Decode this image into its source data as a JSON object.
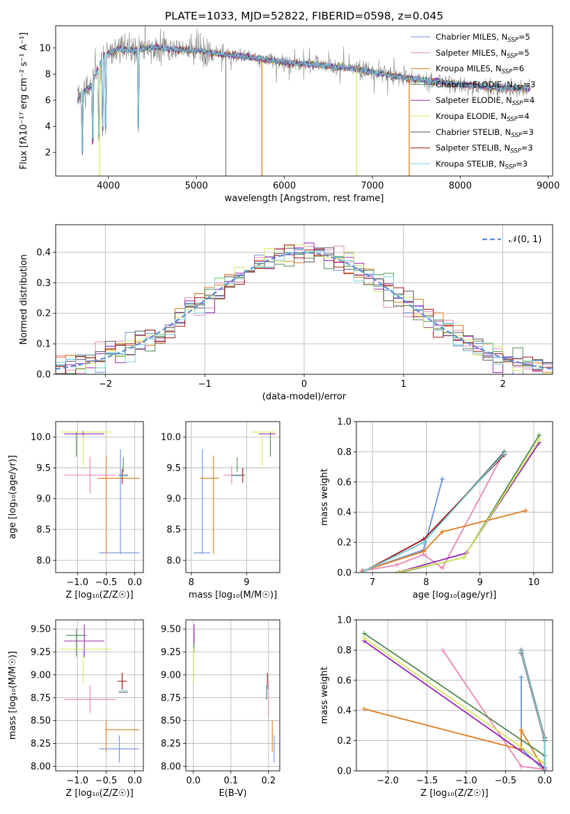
{
  "colors": {
    "Chabrier MILES": "#6a8fdc",
    "Salpeter MILES": "#e886b6",
    "Kroupa MILES": "#e07b1a",
    "Chabrier ELODIE": "#4f8a4f",
    "Salpeter ELODIE": "#9b24b4",
    "Kroupa ELODIE": "#d6ea5a",
    "Chabrier STELIB": "#555555",
    "Salpeter STELIB": "#a01010",
    "Kroupa STELIB": "#77d3df",
    "grid": "#b0b0b0",
    "gauss": "#5b8bd6"
  },
  "chart_data": [
    {
      "id": "spectrum",
      "type": "line",
      "title": "PLATE=1033, MJD=52822, FIBERID=0598, z=0.045",
      "xlabel": "wavelength [Angstrom, rest frame]",
      "ylabel": "Flux [fλ10⁻¹⁷ erg cm⁻² s⁻¹ A⁻¹]",
      "xlim": [
        3400,
        9050
      ],
      "ylim": [
        0.2,
        11.7
      ],
      "xticks": [
        4000,
        5000,
        6000,
        7000,
        8000,
        9000
      ],
      "yticks": [
        2,
        4,
        6,
        8,
        10
      ],
      "grid": false,
      "legend_position": "top-right",
      "legend": [
        {
          "text": "Chabrier MILES, N",
          "sub": "SSP",
          "tail": "=5"
        },
        {
          "text": "Salpeter MILES, N",
          "sub": "SSP",
          "tail": "=5"
        },
        {
          "text": "Kroupa MILES, N",
          "sub": "SSP",
          "tail": "=6"
        },
        {
          "text": "Chabrier ELODIE, N",
          "sub": "SSP",
          "tail": "=3"
        },
        {
          "text": "Salpeter ELODIE, N",
          "sub": "SSP",
          "tail": "=4"
        },
        {
          "text": "Kroupa ELODIE, N",
          "sub": "SSP",
          "tail": "=4"
        },
        {
          "text": "Chabrier STELIB, N",
          "sub": "SSP",
          "tail": "=3"
        },
        {
          "text": "Salpeter STELIB, N",
          "sub": "SSP",
          "tail": "=3"
        },
        {
          "text": "Kroupa STELIB, N",
          "sub": "SSP",
          "tail": "=3"
        }
      ],
      "continuum": [
        [
          3650,
          6.2
        ],
        [
          3800,
          7.1
        ],
        [
          3950,
          9.4
        ],
        [
          4100,
          9.9
        ],
        [
          4300,
          9.8
        ],
        [
          4500,
          10.1
        ],
        [
          4700,
          9.9
        ],
        [
          5000,
          9.8
        ],
        [
          5300,
          9.5
        ],
        [
          5600,
          9.3
        ],
        [
          6000,
          8.9
        ],
        [
          6400,
          8.7
        ],
        [
          6800,
          8.4
        ],
        [
          7200,
          7.9
        ],
        [
          7600,
          7.5
        ],
        [
          8000,
          7.2
        ],
        [
          8500,
          6.9
        ],
        [
          8800,
          6.9
        ]
      ],
      "dips": [
        [
          3700,
          1.5
        ],
        [
          3820,
          2.2
        ],
        [
          3890,
          2.8
        ],
        [
          3934,
          3.2
        ],
        [
          3970,
          3.4
        ],
        [
          4340,
          3.3
        ],
        [
          5335,
          0.2
        ],
        [
          5745,
          0.2
        ],
        [
          6820,
          0.2
        ],
        [
          7420,
          0.2
        ]
      ]
    },
    {
      "id": "residual-histogram",
      "type": "histogram",
      "xlabel": "(data-model)/error",
      "ylabel": "Normed distribution",
      "xlim": [
        -2.5,
        2.5
      ],
      "ylim": [
        0,
        0.49
      ],
      "xticks": [
        -2,
        -1,
        0,
        1,
        2
      ],
      "yticks": [
        0.0,
        0.1,
        0.2,
        0.3,
        0.4
      ],
      "grid": true,
      "bin_width": 0.1,
      "legend": "𝒩(0, 1)",
      "legend_position": "top-right",
      "gaussian": {
        "mean": 0,
        "sigma": 1
      }
    },
    {
      "id": "age-vs-metallicity",
      "type": "errorbar",
      "xlabel": "Z [log₁₀(Z/Z☉)]",
      "ylabel": "age  [log₁₀(age/yr)]",
      "xlim": [
        -1.38,
        0.15
      ],
      "ylim": [
        7.8,
        10.25
      ],
      "xticks": [
        -1.0,
        -0.5,
        0.0
      ],
      "yticks": [
        8.0,
        8.5,
        9.0,
        9.5,
        10.0
      ],
      "grid": true,
      "points": [
        {
          "model": "Chabrier MILES",
          "x": -0.27,
          "xerr": 0.35,
          "y": 8.12,
          "yerr": 0.0
        },
        {
          "model": "Chabrier MILES",
          "x": -0.25,
          "xerr": 0.0,
          "y": 8.95,
          "yerr": 0.85
        },
        {
          "model": "Salpeter MILES",
          "x": -0.78,
          "xerr": 0.45,
          "y": 9.38,
          "yerr": 0.3
        },
        {
          "model": "Kroupa MILES",
          "x": -0.5,
          "xerr": 0.0,
          "y": 8.9,
          "yerr": 0.8
        },
        {
          "model": "Kroupa MILES",
          "x": -0.28,
          "xerr": 0.37,
          "y": 9.33,
          "yerr": 0.0
        },
        {
          "model": "Chabrier ELODIE",
          "x": -1.02,
          "xerr": 0.0,
          "y": 9.88,
          "yerr": 0.2
        },
        {
          "model": "Chabrier ELODIE",
          "x": -0.2,
          "xerr": 0.0,
          "y": 9.55,
          "yerr": 0.12
        },
        {
          "model": "Salpeter ELODIE",
          "x": -0.88,
          "xerr": 0.35,
          "y": 10.05,
          "yerr": 0.0
        },
        {
          "model": "Salpeter ELODIE",
          "x": -0.9,
          "xerr": 0.0,
          "y": 10.02,
          "yerr": 0.08
        },
        {
          "model": "Kroupa ELODIE",
          "x": -0.85,
          "xerr": 0.45,
          "y": 10.08,
          "yerr": 0.0
        },
        {
          "model": "Kroupa ELODIE",
          "x": -0.9,
          "xerr": 0.0,
          "y": 9.78,
          "yerr": 0.25
        },
        {
          "model": "Chabrier STELIB",
          "x": -0.2,
          "xerr": 0.08,
          "y": 9.38,
          "yerr": 0.0
        },
        {
          "model": "Salpeter STELIB",
          "x": -0.22,
          "xerr": 0.0,
          "y": 9.36,
          "yerr": 0.12
        },
        {
          "model": "Kroupa STELIB",
          "x": -0.2,
          "xerr": 0.08,
          "y": 9.37,
          "yerr": 0.0
        }
      ]
    },
    {
      "id": "age-vs-mass",
      "type": "errorbar",
      "xlabel": "mass [log₁₀(M/M☉)]",
      "ylabel": "",
      "xlim": [
        7.9,
        9.6
      ],
      "ylim": [
        7.8,
        10.25
      ],
      "xticks": [
        8,
        9
      ],
      "yticks": [
        8.0,
        8.5,
        9.0,
        9.5,
        10.0
      ],
      "grid": true,
      "points": [
        {
          "model": "Chabrier MILES",
          "x": 8.19,
          "xerr": 0.15,
          "y": 8.12,
          "yerr": 0.0
        },
        {
          "model": "Chabrier MILES",
          "x": 8.2,
          "xerr": 0.0,
          "y": 8.95,
          "yerr": 0.85
        },
        {
          "model": "Salpeter MILES",
          "x": 8.73,
          "xerr": 0.15,
          "y": 9.38,
          "yerr": 0.15
        },
        {
          "model": "Kroupa MILES",
          "x": 8.4,
          "xerr": 0.0,
          "y": 8.9,
          "yerr": 0.8
        },
        {
          "model": "Kroupa MILES",
          "x": 8.33,
          "xerr": 0.17,
          "y": 9.33,
          "yerr": 0.0
        },
        {
          "model": "Chabrier ELODIE",
          "x": 9.43,
          "xerr": 0.0,
          "y": 9.88,
          "yerr": 0.2
        },
        {
          "model": "Chabrier ELODIE",
          "x": 8.83,
          "xerr": 0.0,
          "y": 9.55,
          "yerr": 0.12
        },
        {
          "model": "Salpeter ELODIE",
          "x": 9.37,
          "xerr": 0.15,
          "y": 10.05,
          "yerr": 0.0
        },
        {
          "model": "Kroupa ELODIE",
          "x": 9.3,
          "xerr": 0.22,
          "y": 10.08,
          "yerr": 0.0
        },
        {
          "model": "Kroupa ELODIE",
          "x": 9.28,
          "xerr": 0.0,
          "y": 9.78,
          "yerr": 0.25
        },
        {
          "model": "Chabrier STELIB",
          "x": 8.81,
          "xerr": 0.08,
          "y": 9.38,
          "yerr": 0.0
        },
        {
          "model": "Salpeter STELIB",
          "x": 8.93,
          "xerr": 0.04,
          "y": 9.38,
          "yerr": 0.12
        },
        {
          "model": "Kroupa STELIB",
          "x": 8.85,
          "xerr": 0.08,
          "y": 9.37,
          "yerr": 0.0
        }
      ]
    },
    {
      "id": "mass-weight-vs-age",
      "type": "line",
      "xlabel": "age  [log₁₀(age/yr)]",
      "ylabel": "mass weight",
      "xlim": [
        6.7,
        10.35
      ],
      "ylim": [
        0.0,
        1.0
      ],
      "xticks": [
        7,
        8,
        9,
        10
      ],
      "yticks": [
        0.0,
        0.2,
        0.4,
        0.6,
        0.8,
        1.0
      ],
      "grid": true,
      "series": [
        {
          "model": "Chabrier MILES",
          "x": [
            6.82,
            7.95,
            8.3
          ],
          "y": [
            0.01,
            0.15,
            0.62
          ]
        },
        {
          "model": "Salpeter MILES",
          "x": [
            6.8,
            7.45,
            7.95,
            8.3,
            9.45
          ],
          "y": [
            0.01,
            0.05,
            0.12,
            0.03,
            0.8
          ]
        },
        {
          "model": "Kroupa MILES",
          "x": [
            6.82,
            7.95,
            8.3,
            9.85
          ],
          "y": [
            0.01,
            0.14,
            0.27,
            0.41
          ]
        },
        {
          "model": "Chabrier ELODIE",
          "x": [
            7.5,
            8.7,
            10.1
          ],
          "y": [
            0.0,
            0.1,
            0.91
          ]
        },
        {
          "model": "Salpeter ELODIE",
          "x": [
            7.45,
            8.75,
            10.1
          ],
          "y": [
            0.0,
            0.13,
            0.86
          ]
        },
        {
          "model": "Kroupa ELODIE",
          "x": [
            7.45,
            8.7,
            10.1
          ],
          "y": [
            0.0,
            0.1,
            0.88
          ]
        },
        {
          "model": "Chabrier STELIB",
          "x": [
            6.85,
            7.95,
            9.45
          ],
          "y": [
            0.01,
            0.2,
            0.8
          ]
        },
        {
          "model": "Salpeter STELIB",
          "x": [
            6.85,
            7.95,
            9.45
          ],
          "y": [
            0.01,
            0.22,
            0.78
          ]
        },
        {
          "model": "Kroupa STELIB",
          "x": [
            6.85,
            7.95,
            9.45
          ],
          "y": [
            0.01,
            0.2,
            0.79
          ]
        }
      ]
    },
    {
      "id": "mass-vs-metallicity",
      "type": "errorbar",
      "xlabel": "Z [log₁₀(Z/Z☉)]",
      "ylabel": "mass [log₁₀(M/M☉)]",
      "xlim": [
        -1.38,
        0.15
      ],
      "ylim": [
        7.95,
        9.6
      ],
      "xticks": [
        -1.0,
        -0.5,
        0.0
      ],
      "yticks": [
        8.0,
        8.25,
        8.5,
        8.75,
        9.0,
        9.25,
        9.5
      ],
      "grid": true,
      "points": [
        {
          "model": "Chabrier MILES",
          "x": -0.27,
          "xerr": 0.35,
          "y": 8.19,
          "yerr": 0.15
        },
        {
          "model": "Salpeter MILES",
          "x": -0.78,
          "xerr": 0.45,
          "y": 8.73,
          "yerr": 0.15
        },
        {
          "model": "Kroupa MILES",
          "x": -0.5,
          "xerr": 0.0,
          "y": 8.33,
          "yerr": 0.17
        },
        {
          "model": "Kroupa MILES",
          "x": -0.22,
          "xerr": 0.3,
          "y": 8.4,
          "yerr": 0.0
        },
        {
          "model": "Chabrier ELODIE",
          "x": -1.02,
          "xerr": 0.18,
          "y": 9.43,
          "yerr": 0.0
        },
        {
          "model": "Chabrier ELODIE",
          "x": -1.02,
          "xerr": 0.0,
          "y": 9.35,
          "yerr": 0.15
        },
        {
          "model": "Salpeter ELODIE",
          "x": -0.88,
          "xerr": 0.35,
          "y": 9.37,
          "yerr": 0.18
        },
        {
          "model": "Kroupa ELODIE",
          "x": -0.85,
          "xerr": 0.45,
          "y": 9.28,
          "yerr": 0.0
        },
        {
          "model": "Kroupa ELODIE",
          "x": -0.9,
          "xerr": 0.0,
          "y": 9.1,
          "yerr": 0.2
        },
        {
          "model": "Chabrier STELIB",
          "x": -0.2,
          "xerr": 0.08,
          "y": 8.81,
          "yerr": 0.0
        },
        {
          "model": "Salpeter STELIB",
          "x": -0.22,
          "xerr": 0.08,
          "y": 8.93,
          "yerr": 0.09
        },
        {
          "model": "Kroupa STELIB",
          "x": -0.2,
          "xerr": 0.08,
          "y": 8.83,
          "yerr": 0.0
        }
      ]
    },
    {
      "id": "mass-vs-extinction",
      "type": "errorbar",
      "xlabel": "E(B-V)",
      "ylabel": "",
      "xlim": [
        -0.02,
        0.23
      ],
      "ylim": [
        7.95,
        9.6
      ],
      "xticks": [
        0.0,
        0.1,
        0.2
      ],
      "yticks": [
        8.0,
        8.25,
        8.5,
        8.75,
        9.0,
        9.25,
        9.5
      ],
      "grid": true,
      "points": [
        {
          "model": "Chabrier MILES",
          "x": 0.215,
          "xerr": 0.0,
          "y": 8.19,
          "yerr": 0.15
        },
        {
          "model": "Salpeter MILES",
          "x": 0.2,
          "xerr": 0.0,
          "y": 8.73,
          "yerr": 0.2
        },
        {
          "model": "Kroupa MILES",
          "x": 0.21,
          "xerr": 0.0,
          "y": 8.33,
          "yerr": 0.17
        },
        {
          "model": "Chabrier ELODIE",
          "x": 0.002,
          "xerr": 0.0,
          "y": 9.35,
          "yerr": 0.1
        },
        {
          "model": "Salpeter ELODIE",
          "x": 0.002,
          "xerr": 0.0,
          "y": 9.45,
          "yerr": 0.1
        },
        {
          "model": "Kroupa ELODIE",
          "x": 0.001,
          "xerr": 0.0,
          "y": 9.1,
          "yerr": 0.2
        },
        {
          "model": "Chabrier STELIB",
          "x": 0.195,
          "xerr": 0.0,
          "y": 8.81,
          "yerr": 0.08
        },
        {
          "model": "Salpeter STELIB",
          "x": 0.197,
          "xerr": 0.0,
          "y": 8.93,
          "yerr": 0.09
        },
        {
          "model": "Kroupa STELIB",
          "x": 0.196,
          "xerr": 0.0,
          "y": 8.83,
          "yerr": 0.08
        }
      ]
    },
    {
      "id": "mass-weight-vs-metallicity",
      "type": "line",
      "xlabel": "Z [log₁₀(Z/Z☉)]",
      "ylabel": "mass weight",
      "xlim": [
        -2.4,
        0.1
      ],
      "ylim": [
        0.0,
        1.0
      ],
      "xticks": [
        -2.0,
        -1.5,
        -1.0,
        -0.5,
        0.0
      ],
      "yticks": [
        0.0,
        0.2,
        0.4,
        0.6,
        0.8,
        1.0
      ],
      "grid": true,
      "series": [
        {
          "model": "Chabrier MILES",
          "x": [
            -0.3,
            -0.3,
            0.0,
            0.0
          ],
          "y": [
            0.62,
            0.15,
            0.0,
            0.0
          ]
        },
        {
          "model": "Salpeter MILES",
          "x": [
            -1.3,
            -0.3,
            0.0
          ],
          "y": [
            0.8,
            0.03,
            0.01
          ]
        },
        {
          "model": "Kroupa MILES",
          "x": [
            -2.3,
            -0.3,
            -0.3,
            0.0
          ],
          "y": [
            0.41,
            0.14,
            0.27,
            0.0
          ]
        },
        {
          "model": "Chabrier ELODIE",
          "x": [
            -2.3,
            0.0,
            0.0
          ],
          "y": [
            0.91,
            0.1,
            0.0
          ]
        },
        {
          "model": "Salpeter ELODIE",
          "x": [
            -2.3,
            0.0,
            0.0
          ],
          "y": [
            0.86,
            0.02,
            0.0
          ]
        },
        {
          "model": "Kroupa ELODIE",
          "x": [
            -2.3,
            0.0,
            0.0
          ],
          "y": [
            0.88,
            0.05,
            0.0
          ]
        },
        {
          "model": "Chabrier STELIB",
          "x": [
            -0.3,
            0.0,
            0.0
          ],
          "y": [
            0.8,
            0.22,
            0.0
          ]
        },
        {
          "model": "Salpeter STELIB",
          "x": [
            -0.3,
            0.0,
            0.0
          ],
          "y": [
            0.78,
            0.2,
            0.0
          ]
        },
        {
          "model": "Kroupa STELIB",
          "x": [
            -0.3,
            0.0,
            0.0
          ],
          "y": [
            0.79,
            0.21,
            0.0
          ]
        }
      ]
    }
  ]
}
